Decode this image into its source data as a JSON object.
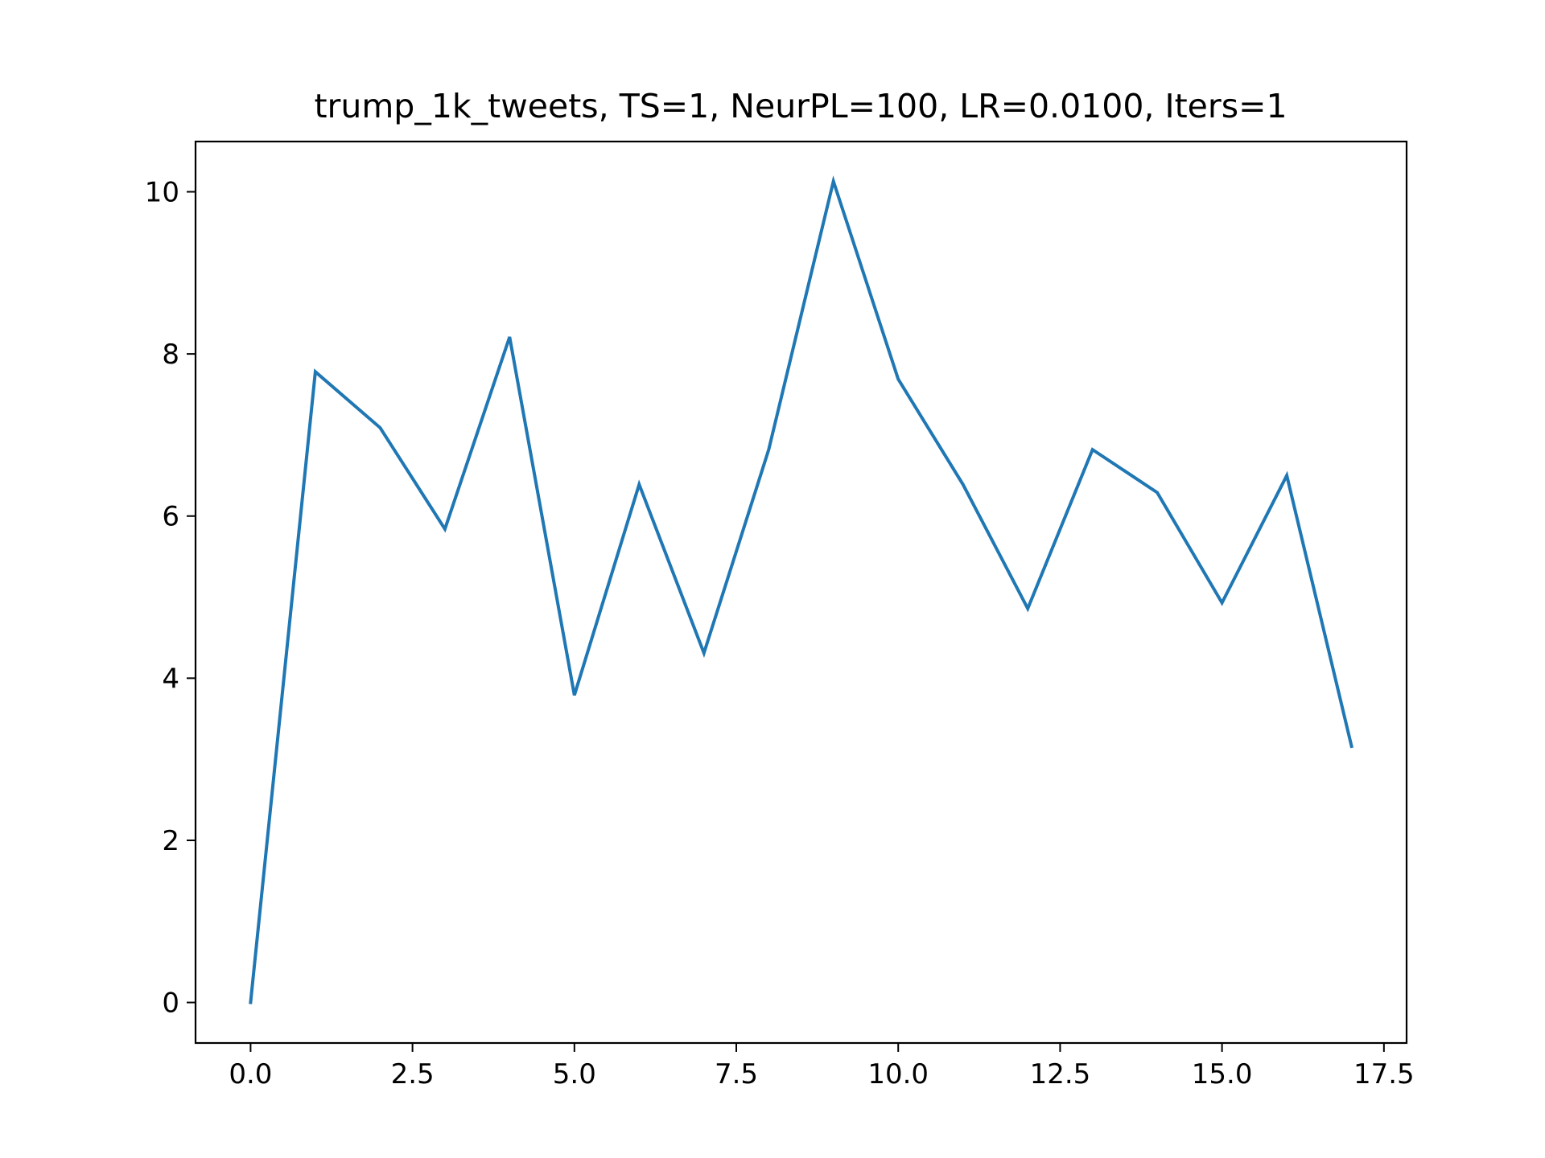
{
  "chart_data": {
    "type": "line",
    "title": "trump_1k_tweets, TS=1, NeurPL=100, LR=0.0100, Iters=1",
    "xlabel": "",
    "ylabel": "",
    "xlim": [
      -0.85,
      17.85
    ],
    "ylim": [
      -0.5,
      10.62
    ],
    "grid": false,
    "xticks": [
      0,
      2.5,
      5,
      7.5,
      10,
      12.5,
      15,
      17.5
    ],
    "xtick_labels": [
      "0.0",
      "2.5",
      "5.0",
      "7.5",
      "10.0",
      "12.5",
      "15.0",
      "17.5"
    ],
    "yticks": [
      0,
      2,
      4,
      6,
      8,
      10
    ],
    "ytick_labels": [
      "0",
      "2",
      "4",
      "6",
      "8",
      "10"
    ],
    "series": [
      {
        "color": "#1f77b4",
        "x": [
          0,
          1,
          2,
          3,
          4,
          5,
          6,
          7,
          8,
          9,
          10,
          11,
          12,
          13,
          14,
          15,
          16,
          17
        ],
        "y": [
          0.0,
          7.78,
          7.09,
          5.84,
          8.21,
          3.79,
          6.39,
          4.31,
          6.82,
          10.13,
          7.69,
          6.39,
          4.86,
          6.82,
          6.29,
          4.93,
          6.5,
          3.16
        ]
      }
    ]
  }
}
